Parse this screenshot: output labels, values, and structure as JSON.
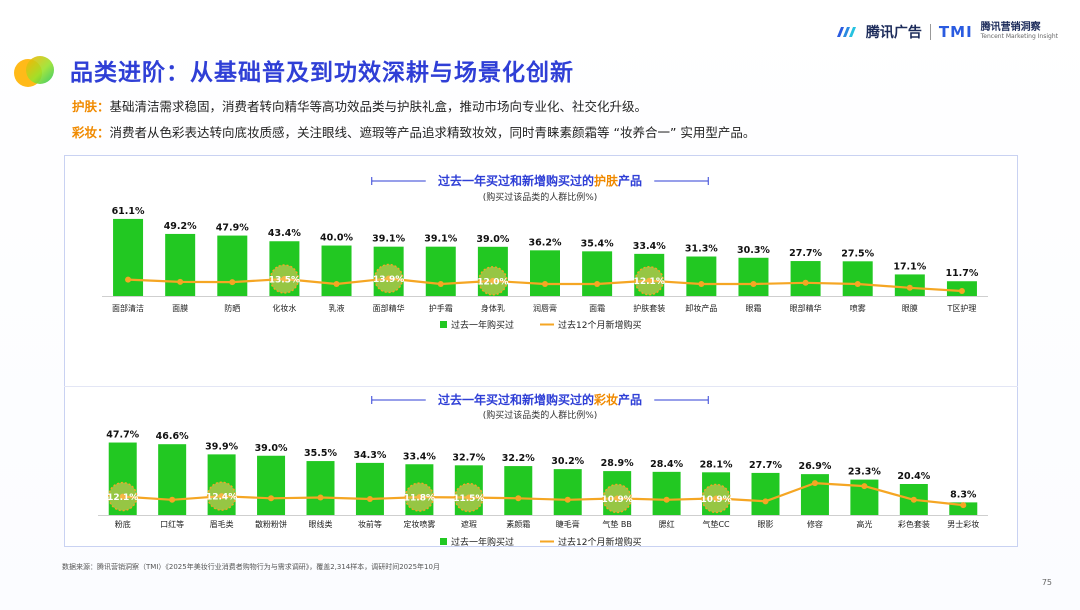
{
  "header": {
    "title": "品类进阶：从基础普及到功效深耕与场景化创新",
    "brand_tencent": "腾讯广告",
    "brand_tmi": "TMI",
    "brand_tmi_cn": "腾讯营销洞察",
    "brand_tmi_en": "Tencent Marketing Insight"
  },
  "descriptions": [
    {
      "tag": "护肤：",
      "text": "基础清洁需求稳固，消费者转向精华等高功效品类与护肤礼盒，推动市场向专业化、社交化升级。"
    },
    {
      "tag": "彩妆：",
      "text": "消费者从色彩表达转向底妆质感，关注眼线、遮瑕等产品追求精致妆效，同时青睐素颜霜等 “妆养合一” 实用型产品。"
    }
  ],
  "footer": {
    "source": "数据来源：腾讯营销洞察（TMI）《2025年美妆行业消费者购物行为与需求调研》，覆盖2,314样本，调研时间2025年10月",
    "page_number": "75"
  },
  "colors": {
    "bar": "#22c822",
    "line": "#f5a623",
    "title_blue": "#2f3fd6",
    "highlight": "#f08a00"
  },
  "chart_data": [
    {
      "type": "bar",
      "title_prefix": "过去一年买过和新增购买过的",
      "title_highlight": "护肤",
      "title_suffix": "产品",
      "subtitle": "(购买过该品类的人群比例%)",
      "categories": [
        "面部清洁",
        "面膜",
        "防晒",
        "化妆水",
        "乳液",
        "面部精华",
        "护手霜",
        "身体乳",
        "润唇膏",
        "面霜",
        "护肤套装",
        "卸妆产品",
        "眼霜",
        "眼部精华",
        "喷雾",
        "眼膜",
        "T区护理"
      ],
      "series": [
        {
          "name": "过去一年购买过",
          "kind": "bar",
          "values": [
            61.1,
            49.2,
            47.9,
            43.4,
            40.0,
            39.1,
            39.1,
            39.0,
            36.2,
            35.4,
            33.4,
            31.3,
            30.3,
            27.7,
            27.5,
            17.1,
            11.7
          ]
        },
        {
          "name": "过去12个月新增购买",
          "kind": "line",
          "values": [
            13.0,
            11.2,
            11.0,
            13.5,
            9.5,
            13.9,
            9.5,
            12.0,
            9.5,
            9.5,
            12.1,
            9.5,
            9.5,
            10.5,
            9.5,
            6.5,
            4.0
          ]
        }
      ],
      "labels_bar": [
        "61.1%",
        "49.2%",
        "47.9%",
        "43.4%",
        "40.0%",
        "39.1%",
        "39.1%",
        "39.0%",
        "36.2%",
        "35.4%",
        "33.4%",
        "31.3%",
        "30.3%",
        "27.7%",
        "27.5%",
        "17.1%",
        "11.7%"
      ],
      "highlights": [
        {
          "index": 3,
          "label": "13.5%"
        },
        {
          "index": 5,
          "label": "13.9%"
        },
        {
          "index": 7,
          "label": "12.0%"
        },
        {
          "index": 10,
          "label": "12.1%"
        }
      ],
      "legend": {
        "bar": "过去一年购买过",
        "line": "过去12个月新增购买",
        "position": "bottom"
      },
      "ylim": [
        0,
        65
      ]
    },
    {
      "type": "bar",
      "title_prefix": "过去一年买过和新增购买过的",
      "title_highlight": "彩妆",
      "title_suffix": "产品",
      "subtitle": "(购买过该品类的人群比例%)",
      "categories": [
        "粉底",
        "口红等",
        "眉毛类",
        "散粉粉饼",
        "眼线类",
        "妆前等",
        "定妆喷雾",
        "遮瑕",
        "素颜霜",
        "睫毛膏",
        "气垫 BB",
        "腮红",
        "气垫CC",
        "眼影",
        "修容",
        "高光",
        "彩色套装",
        "男士彩妆"
      ],
      "series": [
        {
          "name": "过去一年购买过",
          "kind": "bar",
          "values": [
            47.7,
            46.6,
            39.9,
            39.0,
            35.5,
            34.3,
            33.4,
            32.7,
            32.2,
            30.2,
            28.9,
            28.4,
            28.1,
            27.7,
            26.9,
            23.3,
            20.4,
            8.3
          ]
        },
        {
          "name": "过去12个月新增购买",
          "kind": "line",
          "values": [
            12.1,
            10.0,
            12.4,
            11.0,
            11.5,
            10.5,
            11.8,
            11.5,
            11.0,
            10.0,
            10.9,
            10.0,
            10.9,
            9.0,
            21.0,
            19.0,
            10.0,
            6.5
          ]
        }
      ],
      "labels_bar": [
        "47.7%",
        "46.6%",
        "39.9%",
        "39.0%",
        "35.5%",
        "34.3%",
        "33.4%",
        "32.7%",
        "32.2%",
        "30.2%",
        "28.9%",
        "28.4%",
        "28.1%",
        "27.7%",
        "26.9%",
        "23.3%",
        "20.4%",
        "8.3%"
      ],
      "highlights": [
        {
          "index": 0,
          "label": "12.1%"
        },
        {
          "index": 2,
          "label": "12.4%"
        },
        {
          "index": 6,
          "label": "11.8%"
        },
        {
          "index": 7,
          "label": "11.5%"
        },
        {
          "index": 10,
          "label": "10.9%"
        },
        {
          "index": 12,
          "label": "10.9%"
        }
      ],
      "legend": {
        "bar": "过去一年购买过",
        "line": "过去12个月新增购买",
        "position": "bottom"
      },
      "ylim": [
        0,
        52
      ]
    }
  ]
}
